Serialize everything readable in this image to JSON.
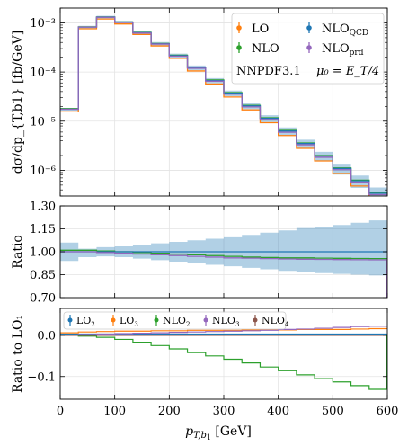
{
  "chart_data": [
    {
      "type": "line",
      "step": true,
      "yscale": "log",
      "x_edges": [
        0,
        33.33,
        66.67,
        100,
        133.33,
        166.67,
        200,
        233.33,
        266.67,
        300,
        333.33,
        366.67,
        400,
        433.33,
        466.67,
        500,
        533.33,
        566.67,
        600
      ],
      "ylim": [
        3e-07,
        0.002
      ],
      "ylabel": "dσ/dp_{T,b1} [fb/GeV]",
      "yticks": [
        {
          "value": 1e-06,
          "label": "10⁻⁶"
        },
        {
          "value": 1e-05,
          "label": "10⁻⁵"
        },
        {
          "value": 0.0001,
          "label": "10⁻⁴"
        },
        {
          "value": 0.001,
          "label": "10⁻³"
        }
      ],
      "series": [
        {
          "name": "LO",
          "color": "#ff7f0e",
          "values": [
            1.55e-05,
            0.00076,
            0.0012,
            0.00095,
            0.00058,
            0.00034,
            0.00019,
            0.000105,
            5.7e-05,
            3.1e-05,
            1.7e-05,
            9.3e-06,
            5.1e-06,
            2.8e-06,
            1.55e-06,
            8.6e-07,
            4.8e-07,
            2.7e-07
          ]
        },
        {
          "name": "NLO",
          "color": "#2ca02c",
          "values": [
            1.8e-05,
            0.00083,
            0.00132,
            0.00104,
            0.00064,
            0.00038,
            0.00022,
            0.000125,
            6.9e-05,
            3.8e-05,
            2.1e-05,
            1.17e-05,
            6.5e-06,
            3.6e-06,
            2e-06,
            1.12e-06,
            6.3e-07,
            3.5e-07
          ]
        },
        {
          "name": "NLO_QCD",
          "color": "#1f77b4",
          "band": true,
          "values": [
            1.75e-05,
            0.00082,
            0.00131,
            0.00103,
            0.00063,
            0.000375,
            0.000215,
            0.000122,
            6.7e-05,
            3.7e-05,
            2.05e-05,
            1.14e-05,
            6.3e-06,
            3.5e-06,
            1.95e-06,
            1.09e-06,
            6.1e-07,
            3.4e-07
          ],
          "band_rel": [
            0.06,
            0.06,
            0.06,
            0.07,
            0.08,
            0.09,
            0.1,
            0.11,
            0.12,
            0.13,
            0.14,
            0.16,
            0.18,
            0.2,
            0.22,
            0.25,
            0.28,
            0.32
          ]
        },
        {
          "name": "NLO_prd",
          "color": "#9467bd",
          "values": [
            1.75e-05,
            0.00082,
            0.0013,
            0.00102,
            0.00062,
            0.00037,
            0.00021,
            0.000119,
            6.5e-05,
            3.55e-05,
            1.95e-05,
            1.08e-05,
            5.95e-06,
            3.3e-06,
            1.84e-06,
            1.03e-06,
            5.75e-07,
            3.2e-07
          ]
        }
      ],
      "legend": {
        "placement": "top-right",
        "entries": [
          {
            "label": "LO",
            "sub": "",
            "color": "#ff7f0e"
          },
          {
            "label": "NLO",
            "sub": "QCD",
            "color": "#1f77b4"
          },
          {
            "label": "NLO",
            "sub": "",
            "color": "#2ca02c"
          },
          {
            "label": "NLO",
            "sub": "prd",
            "color": "#9467bd"
          }
        ],
        "annotation_left": "NNPDF3.1",
        "annotation_right": "μ₀ = E_T/4"
      }
    },
    {
      "type": "line",
      "step": true,
      "ylim": [
        0.7,
        1.3
      ],
      "ylabel": "Ratio",
      "yticks": [
        {
          "value": 0.7,
          "label": "0.70"
        },
        {
          "value": 0.85,
          "label": "0.85"
        },
        {
          "value": 1.0,
          "label": "1.00"
        },
        {
          "value": 1.15,
          "label": "1.15"
        },
        {
          "value": 1.3,
          "label": "1.30"
        }
      ],
      "band": {
        "color": "#1f77b4",
        "lower": [
          0.94,
          0.965,
          0.97,
          0.965,
          0.955,
          0.945,
          0.935,
          0.925,
          0.915,
          0.905,
          0.895,
          0.885,
          0.875,
          0.865,
          0.86,
          0.855,
          0.85,
          0.845
        ],
        "upper": [
          1.06,
          1.02,
          1.03,
          1.035,
          1.045,
          1.055,
          1.065,
          1.075,
          1.085,
          1.095,
          1.11,
          1.125,
          1.14,
          1.155,
          1.165,
          1.175,
          1.19,
          1.205
        ]
      },
      "series": [
        {
          "name": "NLO",
          "color": "#2ca02c",
          "values": [
            1.01,
            1.01,
            1.005,
            1.0,
            0.995,
            0.99,
            0.985,
            0.98,
            0.975,
            0.97,
            0.965,
            0.962,
            0.96,
            0.96,
            0.958,
            0.957,
            0.956,
            0.955
          ]
        },
        {
          "name": "NLO_QCD",
          "color": "#1f77b4",
          "values": [
            1.0,
            1.0,
            1.0,
            1.0,
            1.0,
            1.0,
            1.0,
            1.0,
            1.0,
            1.0,
            1.0,
            1.0,
            1.0,
            1.0,
            1.0,
            1.0,
            1.0,
            1.0
          ]
        },
        {
          "name": "NLO_prd",
          "color": "#9467bd",
          "values": [
            1.0,
            1.0,
            0.995,
            0.99,
            0.985,
            0.98,
            0.975,
            0.97,
            0.965,
            0.96,
            0.958,
            0.955,
            0.953,
            0.951,
            0.95,
            0.949,
            0.948,
            0.947
          ]
        }
      ]
    },
    {
      "type": "line",
      "step": true,
      "ylim": [
        -0.155,
        0.065
      ],
      "ylabel": "Ratio to LO₁",
      "xlabel": "p_{T,b1} [GeV]",
      "xlim": [
        0,
        600
      ],
      "xticks": [
        0,
        100,
        200,
        300,
        400,
        500,
        600
      ],
      "yticks": [
        {
          "value": 0.0,
          "label": "0.0"
        },
        {
          "value": -0.1,
          "label": "−0.1"
        }
      ],
      "series": [
        {
          "name": "LO_2",
          "color": "#1f77b4",
          "values": [
            0.003,
            0.003,
            0.003,
            0.003,
            0.003,
            0.003,
            0.003,
            0.003,
            0.003,
            0.003,
            0.003,
            0.003,
            0.003,
            0.003,
            0.003,
            0.003,
            0.003,
            0.003
          ]
        },
        {
          "name": "LO_3",
          "color": "#ff7f0e",
          "values": [
            0.006,
            0.008,
            0.009,
            0.01,
            0.01,
            0.011,
            0.011,
            0.012,
            0.012,
            0.012,
            0.013,
            0.013,
            0.013,
            0.014,
            0.014,
            0.014,
            0.015,
            0.016
          ]
        },
        {
          "name": "NLO_2",
          "color": "#2ca02c",
          "values": [
            0.0,
            -0.002,
            -0.005,
            -0.01,
            -0.017,
            -0.025,
            -0.033,
            -0.042,
            -0.05,
            -0.058,
            -0.067,
            -0.077,
            -0.086,
            -0.096,
            -0.105,
            -0.113,
            -0.122,
            -0.131
          ]
        },
        {
          "name": "NLO_3",
          "color": "#9467bd",
          "values": [
            0.0,
            0.002,
            0.003,
            0.004,
            0.005,
            0.006,
            0.007,
            0.008,
            0.009,
            0.01,
            0.011,
            0.012,
            0.014,
            0.015,
            0.017,
            0.019,
            0.021,
            0.022
          ]
        },
        {
          "name": "NLO_4",
          "color": "#8c564b",
          "values": [
            0.0,
            0.0,
            0.0,
            0.0,
            0.0,
            0.0,
            0.0,
            0.0,
            0.0,
            0.0,
            0.0,
            0.0,
            0.0,
            0.0,
            0.0,
            0.0,
            0.0,
            0.0
          ]
        }
      ],
      "legend": {
        "placement": "top-left",
        "entries": [
          {
            "label": "LO",
            "sub": "2",
            "color": "#1f77b4"
          },
          {
            "label": "LO",
            "sub": "3",
            "color": "#ff7f0e"
          },
          {
            "label": "NLO",
            "sub": "2",
            "color": "#2ca02c"
          },
          {
            "label": "NLO",
            "sub": "3",
            "color": "#9467bd"
          },
          {
            "label": "NLO",
            "sub": "4",
            "color": "#8c564b"
          }
        ]
      }
    }
  ]
}
